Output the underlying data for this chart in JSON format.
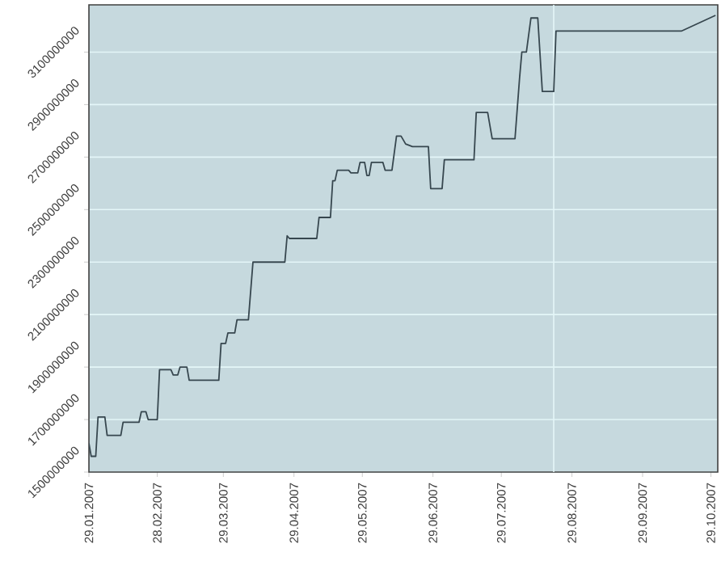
{
  "chart_data": {
    "type": "line",
    "color": "#37474f",
    "grid": "y",
    "x": [
      "2007-01-29",
      "2007-01-30",
      "2007-02-01",
      "2007-02-02",
      "2007-02-05",
      "2007-02-06",
      "2007-02-12",
      "2007-02-13",
      "2007-02-20",
      "2007-02-21",
      "2007-02-23",
      "2007-02-24",
      "2007-02-28",
      "2007-03-01",
      "2007-03-06",
      "2007-03-07",
      "2007-03-09",
      "2007-03-10",
      "2007-03-13",
      "2007-03-14",
      "2007-03-27",
      "2007-03-28",
      "2007-03-30",
      "2007-03-31",
      "2007-04-03",
      "2007-04-04",
      "2007-04-09",
      "2007-04-11",
      "2007-04-25",
      "2007-04-26",
      "2007-04-27",
      "2007-05-09",
      "2007-05-10",
      "2007-05-15",
      "2007-05-16",
      "2007-05-17",
      "2007-05-18",
      "2007-05-23",
      "2007-05-24",
      "2007-05-27",
      "2007-05-28",
      "2007-05-30",
      "2007-05-31",
      "2007-06-01",
      "2007-06-02",
      "2007-06-07",
      "2007-06-08",
      "2007-06-11",
      "2007-06-13",
      "2007-06-15",
      "2007-06-17",
      "2007-06-20",
      "2007-06-27",
      "2007-06-28",
      "2007-07-03",
      "2007-07-04",
      "2007-07-17",
      "2007-07-18",
      "2007-07-23",
      "2007-07-25",
      "2007-08-04",
      "2007-08-06",
      "2007-08-07",
      "2007-08-09",
      "2007-08-11",
      "2007-08-14",
      "2007-08-16",
      "2007-08-21",
      "2007-08-22",
      "2007-10-16",
      "2007-10-31"
    ],
    "values": [
      1610000000,
      1560000000,
      1560000000,
      1710000000,
      1710000000,
      1640000000,
      1640000000,
      1690000000,
      1690000000,
      1730000000,
      1730000000,
      1700000000,
      1700000000,
      1890000000,
      1890000000,
      1870000000,
      1870000000,
      1900000000,
      1900000000,
      1850000000,
      1850000000,
      1990000000,
      1990000000,
      2030000000,
      2030000000,
      2080000000,
      2080000000,
      2300000000,
      2300000000,
      2400000000,
      2390000000,
      2390000000,
      2470000000,
      2470000000,
      2610000000,
      2610000000,
      2650000000,
      2650000000,
      2640000000,
      2640000000,
      2680000000,
      2680000000,
      2630000000,
      2630000000,
      2680000000,
      2680000000,
      2650000000,
      2650000000,
      2780000000,
      2780000000,
      2750000000,
      2740000000,
      2740000000,
      2580000000,
      2580000000,
      2690000000,
      2690000000,
      2870000000,
      2870000000,
      2770000000,
      2770000000,
      3000000000,
      3100000000,
      3100000000,
      3230000000,
      3230000000,
      2950000000,
      2950000000,
      3180000000,
      3180000000,
      3240000000
    ],
    "xlim": [
      "2007-01-29",
      "2007-11-01"
    ],
    "xticks": [
      {
        "value": "2007-01-29",
        "label": "29.01.2007"
      },
      {
        "value": "2007-02-28",
        "label": "28.02.2007"
      },
      {
        "value": "2007-03-29",
        "label": "29.03.2007"
      },
      {
        "value": "2007-04-29",
        "label": "29.04.2007"
      },
      {
        "value": "2007-05-29",
        "label": "29.05.2007"
      },
      {
        "value": "2007-06-29",
        "label": "29.06.2007"
      },
      {
        "value": "2007-07-29",
        "label": "29.07.2007"
      },
      {
        "value": "2007-08-29",
        "label": "29.08.2007"
      },
      {
        "value": "2007-09-29",
        "label": "29.09.2007"
      },
      {
        "value": "2007-10-29",
        "label": "29.10.2007"
      }
    ],
    "ylim": [
      1500000000,
      3280000000
    ],
    "yticks": [
      1500000000,
      1700000000,
      1900000000,
      2100000000,
      2300000000,
      2500000000,
      2700000000,
      2900000000,
      3100000000
    ],
    "ref_lines": [
      {
        "axis": "x",
        "value": "2007-08-21",
        "color": "#e4f6f8"
      }
    ]
  }
}
